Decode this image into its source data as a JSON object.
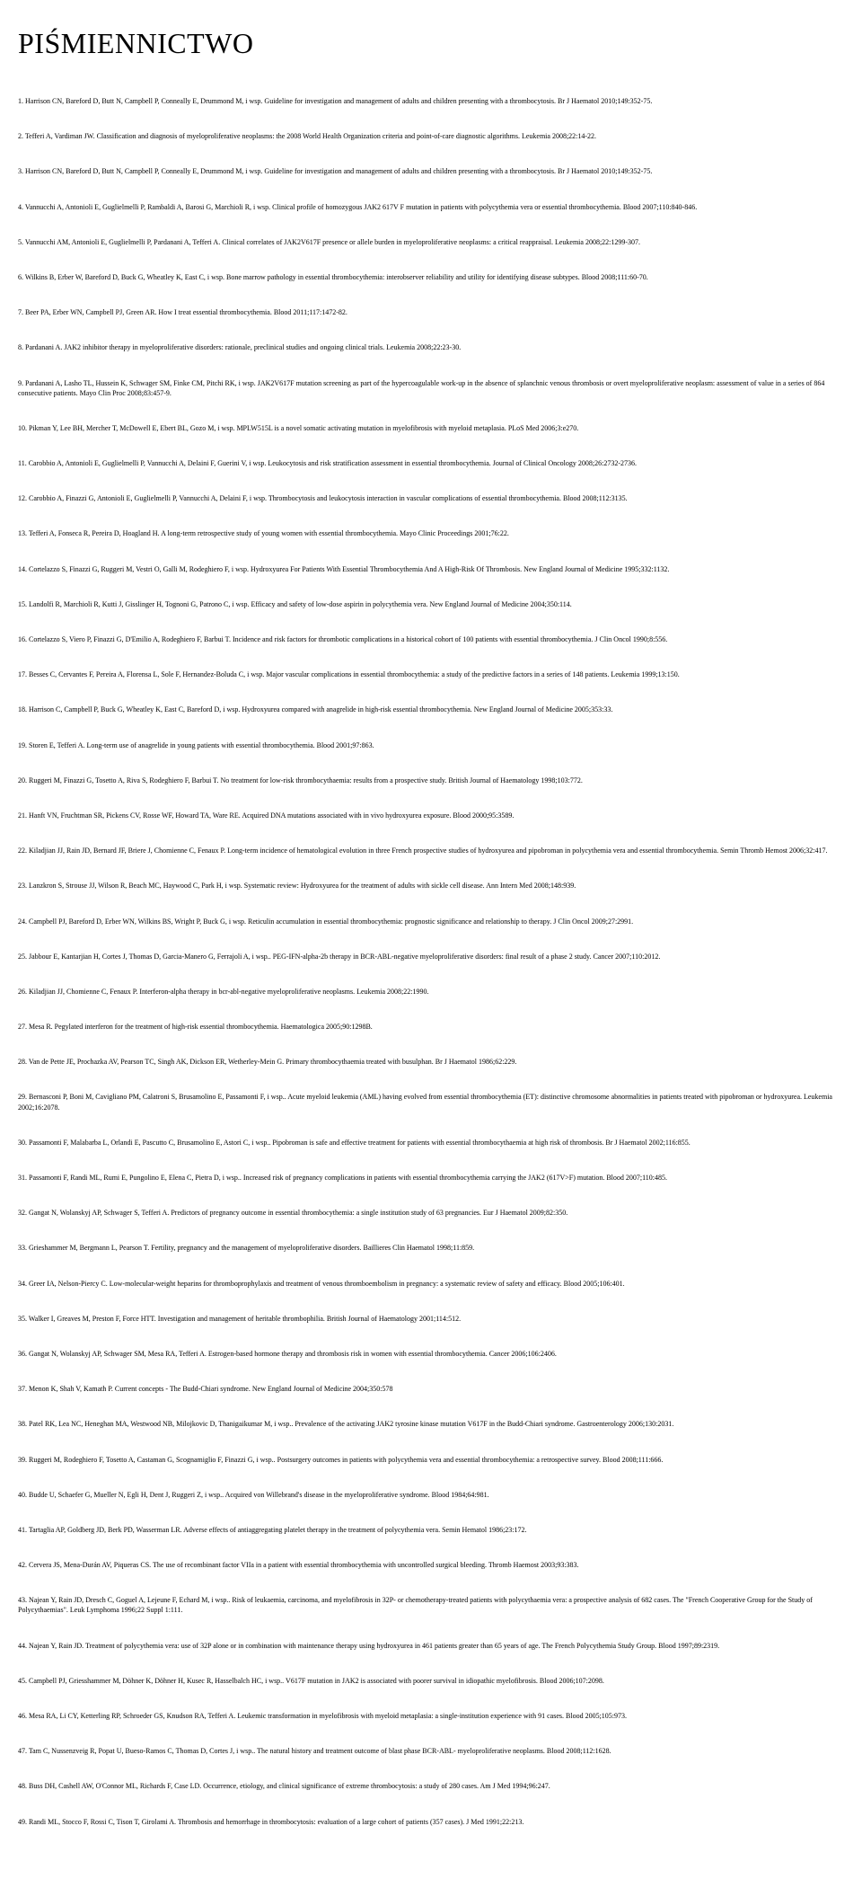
{
  "title": "PIŚMIENNICTWO",
  "references": [
    "1. Harrison CN, Bareford D, Butt N, Campbell P, Conneally E, Drummond M, i wsp. Guideline for investigation and management of adults and children presenting with a thrombocytosis. Br J Haematol 2010;149:352-75.",
    "2. Tefferi A, Vardiman JW. Classification and diagnosis of myeloproliferative neoplasms: the 2008 World Health Organization criteria and point-of-care diagnostic algorithms. Leukemia 2008;22:14-22.",
    "3. Harrison CN, Bareford D, Butt N, Campbell P, Conneally E, Drummond M, i wsp. Guideline for investigation and management of adults and children presenting with a thrombocytosis. Br J Haematol 2010;149:352-75.",
    "4. Vannucchi A, Antonioli E, Guglielmelli P, Rambaldi A, Barosi G, Marchioli R, i wsp. Clinical profile of homozygous JAK2 617V F mutation in patients with polycythemia vera or essential thrombocythemia. Blood 2007;110:840-846.",
    "5. Vannucchi AM, Antonioli E, Guglielmelli P, Pardanani A, Tefferi A. Clinical correlates of JAK2V617F presence or allele burden in myeloproliferative neoplasms: a critical reappraisal. Leukemia 2008;22:1299-307.",
    "6. Wilkins B, Erber W, Bareford D, Buck G, Wheatley K, East C, i wsp. Bone marrow pathology in essential thrombocythemia: interobserver reliability and utility for identifying disease subtypes. Blood 2008;111:60-70.",
    "7. Beer PA, Erber WN, Campbell PJ, Green AR. How I treat essential thrombocythemia. Blood 2011;117:1472-82.",
    "8. Pardanani A. JAK2 inhibitor therapy in myeloproliferative disorders: rationale, preclinical studies and ongoing clinical trials. Leukemia 2008;22:23-30.",
    "9. Pardanani A, Lasho TL, Hussein K, Schwager SM, Finke CM, Pitchi RK, i wsp. JAK2V617F mutation screening as part of the hypercoagulable work-up in the absence of splanchnic venous thrombosis or overt myeloproliferative neoplasm: assessment of value in a series of 864 consecutive patients. Mayo Clin Proc 2008;83:457-9.",
    "10. Pikman Y, Lee BH, Mercher T, McDowell E, Ebert BL, Gozo M, i wsp. MPLW515L is a novel somatic activating mutation in myelofibrosis with myeloid metaplasia. PLoS Med 2006;3:e270.",
    "11. Carobbio A, Antonioli E, Guglielmelli P, Vannucchi A, Delaini F, Guerini V, i wsp. Leukocytosis and risk stratification assessment in essential thrombocythemia. Journal of Clinical Oncology 2008;26:2732-2736.",
    "12. Carobbio A, Finazzi G, Antonioli E, Guglielmelli P, Vannucchi A, Delaini F, i wsp. Thrombocytosis and leukocytosis interaction in vascular complications of essential thrombocythemia. Blood 2008;112:3135.",
    "13. Tefferi A, Fonseca R, Pereira D, Hoagland H. A long-term retrospective study of young women with essential thrombocythemia. Mayo Clinic Proceedings 2001;76:22.",
    "14. Cortelazzo S, Finazzi G, Ruggeri M, Vestri O, Galli M, Rodeghiero F, i wsp. Hydroxyurea For Patients With Essential Thrombocythemia And A High-Risk Of Thrombosis. New England Journal of Medicine 1995;332:1132.",
    "15. Landolfi R, Marchioli R, Kutti J, Gisslinger H, Tognoni G, Patrono C, i wsp. Efficacy and safety of low-dose aspirin in polycythemia vera. New England Journal of Medicine 2004;350:114.",
    "16. Cortelazzo S, Viero P, Finazzi G, D'Emilio A, Rodeghiero F, Barbui T. Incidence and risk factors for thrombotic complications in a historical cohort of 100 patients with essential thrombocythemia. J Clin Oncol 1990;8:556.",
    "17. Besses C, Cervantes F, Pereira A, Florensa L, Sole F, Hernandez-Boluda C, i wsp. Major vascular complications in essential thrombocythemia: a study of the predictive factors in a series of 148 patients. Leukemia 1999;13:150.",
    "18. Harrison C, Campbell P, Buck G, Wheatley K, East C, Bareford D, i wsp. Hydroxyurea compared with anagrelide in high-risk essential thrombocythemia. New England Journal of Medicine 2005;353:33.",
    "19. Storen E, Tefferi A. Long-term use of anagrelide in young patients with essential thrombocythemia. Blood 2001;97:863.",
    "20. Ruggeri M, Finazzi G, Tosetto A, Riva S, Rodeghiero F, Barbui T. No treatment for low-risk thrombocythaemia: results from a prospective study. British Journal of Haematology 1998;103:772.",
    "21. Hanft VN, Fruchtman SR, Pickens CV, Rosse WF, Howard TA, Ware RE. Acquired DNA mutations associated with in vivo hydroxyurea exposure. Blood 2000;95:3589.",
    "22. Kiladjian JJ, Rain JD, Bernard JF, Briere J, Chomienne C, Fenaux P. Long-term incidence of hematological evolution in three French prospective studies of hydroxyurea and pipobroman in polycythemia vera and essential thrombocythemia. Semin Thromb Hemost 2006;32:417.",
    "23. Lanzkron S, Strouse JJ, Wilson R, Beach MC, Haywood C, Park H, i wsp. Systematic review: Hydroxyurea for the treatment of adults with sickle cell disease. Ann Intern Med 2008;148:939.",
    "24. Campbell PJ, Bareford D, Erber WN, Wilkins BS, Wright P, Buck G, i wsp. Reticulin accumulation in essential thrombocythemia: prognostic significance and relationship to therapy. J Clin Oncol 2009;27:2991.",
    "25. Jabbour E, Kantarjian H, Cortes J, Thomas D, Garcia-Manero G, Ferrajoli A, i wsp.. PEG-IFN-alpha-2b therapy in BCR-ABL-negative myeloproliferative disorders: final result of a phase 2 study. Cancer 2007;110:2012.",
    "26. Kiladjian JJ, Chomienne C, Fenaux P. Interferon-alpha therapy in bcr-abl-negative myeloproliferative neoplasms. Leukemia 2008;22:1990.",
    "27. Mesa R. Pegylated interferon for the treatment of high-risk essential thrombocythemia. Haematologica 2005;90:1298B.",
    "28. Van de Pette JE, Prochazka AV, Pearson TC, Singh AK, Dickson ER, Wetherley-Mein G. Primary thrombocythaemia treated with busulphan. Br J Haematol 1986;62:229.",
    "29. Bernasconi P, Boni M, Cavigliano PM, Calatroni S, Brusamolino E, Passamonti F, i wsp.. Acute myeloid leukemia (AML) having evolved from essential thrombocythemia (ET): distinctive chromosome abnormalities in patients treated with pipobroman or hydroxyurea. Leukemia 2002;16:2078.",
    "30. Passamonti F, Malabarba L, Orlandi E, Pascutto C, Brusamolino E, Astori C, i wsp.. Pipobroman is safe and effective treatment for patients with essential thrombocythaemia at high risk of thrombosis. Br J Haematol 2002;116:855.",
    "31. Passamonti F, Randi ML, Rumi E, Pungolino E, Elena C, Pietra D, i wsp.. Increased risk of pregnancy complications in patients with essential thrombocythemia carrying the JAK2 (617V>F) mutation. Blood 2007;110:485.",
    "32. Gangat N, Wolanskyj AP, Schwager S, Tefferi A. Predictors of pregnancy outcome in essential thrombocythemia: a single institution study of 63 pregnancies. Eur J Haematol 2009;82:350.",
    "33. Grieshammer M, Bergmann L, Pearson T. Fertility, pregnancy and the management of myeloproliferative disorders. Baillieres Clin Haematol 1998;11:859.",
    "34. Greer IA, Nelson-Piercy C. Low-molecular-weight heparins for thromboprophylaxis and treatment of venous thromboembolism in pregnancy: a systematic review of safety and efficacy. Blood 2005;106:401.",
    "35. Walker I, Greaves M, Preston F, Force HTT. Investigation and management of heritable thrombophilia. British Journal of Haematology 2001;114:512.",
    "36. Gangat N, Wolanskyj AP, Schwager SM, Mesa RA, Tefferi A. Estrogen-based hormone therapy and thrombosis risk in women with essential thrombocythemia. Cancer 2006;106:2406.",
    "37. Menon K, Shah V, Kamath P. Current concepts - The Budd-Chiari syndrome. New England Journal of Medicine 2004;350:578",
    "38. Patel RK, Lea NC, Heneghan MA, Westwood NB, Milojkovic D, Thanigaikumar M, i wsp.. Prevalence of the activating JAK2 tyrosine kinase mutation V617F in the Budd-Chiari syndrome. Gastroenterology 2006;130:2031.",
    "39. Ruggeri M, Rodeghiero F, Tosetto A, Castaman G, Scognamiglio F, Finazzi G, i wsp.. Postsurgery outcomes in patients with polycythemia vera and essential thrombocythemia: a retrospective survey. Blood 2008;111:666.",
    "40. Budde U, Schaefer G, Mueller N, Egli H, Dent J, Ruggeri Z, i wsp.. Acquired von Willebrand's disease in the myeloproliferative syndrome. Blood 1984;64:981.",
    "41. Tartaglia AP, Goldberg JD, Berk PD, Wasserman LR. Adverse effects of antiaggregating platelet therapy in the treatment of polycythemia vera. Semin Hematol 1986;23:172.",
    "42. Cervera JS, Mena-Durán AV, Piqueras CS. The use of recombinant factor VIIa in a patient with essential thrombocythemia with uncontrolled surgical bleeding. Thromb Haemost 2003;93:383.",
    "43. Najean Y, Rain JD, Dresch C, Goguel A, Lejeune F, Echard M, i wsp.. Risk of leukaemia, carcinoma, and myelofibrosis in 32P- or chemotherapy-treated patients with polycythaemia vera: a prospective analysis of 682 cases. The \"French Cooperative Group for the Study of Polycythaemias\". Leuk Lymphoma 1996;22 Suppl 1:111.",
    "44. Najean Y, Rain JD. Treatment of polycythemia vera: use of 32P alone or in combination with maintenance therapy using hydroxyurea in 461 patients greater than 65 years of age. The French Polycythemia Study Group. Blood 1997;89:2319.",
    "45. Campbell PJ, Griesshammer M, Döhner K, Döhner H, Kusec R, Hasselbalch HC, i wsp.. V617F mutation in JAK2 is associated with poorer survival in idiopathic myelofibrosis. Blood 2006;107:2098.",
    "46. Mesa RA, Li CY, Ketterling RP, Schroeder GS, Knudson RA, Tefferi A. Leukemic transformation in myelofibrosis with myeloid metaplasia: a single-institution experience with 91 cases. Blood 2005;105:973.",
    "47. Tam C, Nussenzveig R, Popat U, Bueso-Ramos C, Thomas D, Cortes J, i wsp.. The natural history and treatment outcome of blast phase BCR-ABL- myeloproliferative neoplasms. Blood 2008;112:1628.",
    "48. Buss DH, Cashell AW, O'Connor ML, Richards F, Case LD. Occurrence, etiology, and clinical significance of extreme thrombocytosis: a study of 280 cases. Am J Med 1994;96:247.",
    "49. Randi ML, Stocco F, Rossi C, Tison T, Girolami A. Thrombosis and hemorrhage in thrombocytosis: evaluation of a large cohort of patients (357 cases). J Med 1991;22:213."
  ]
}
